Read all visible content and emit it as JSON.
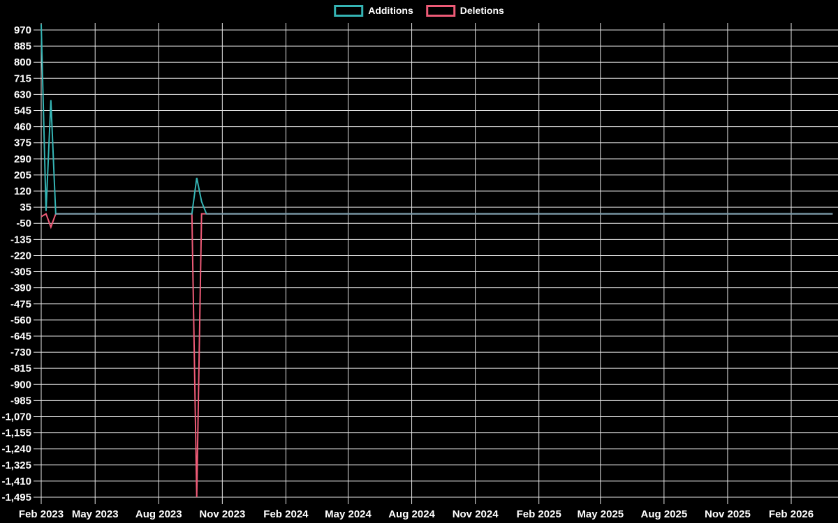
{
  "legend": {
    "items": [
      {
        "label": "Additions",
        "color": "#35b4b4"
      },
      {
        "label": "Deletions",
        "color": "#ee5b77"
      }
    ]
  },
  "chart_data": {
    "type": "line",
    "title": "",
    "background": "#000000",
    "grid": true,
    "grid_color": "#e6e6e6",
    "text_color": "#ffffff",
    "overlap_line_color": "#7e9dac",
    "legend_position": "top-center",
    "ylim": [
      -1495,
      970
    ],
    "y_tick_step": 85,
    "y_ticks": [
      {
        "value": 970,
        "label": "970"
      },
      {
        "value": 885,
        "label": "885"
      },
      {
        "value": 800,
        "label": "800"
      },
      {
        "value": 715,
        "label": "715"
      },
      {
        "value": 630,
        "label": "630"
      },
      {
        "value": 545,
        "label": "545"
      },
      {
        "value": 460,
        "label": "460"
      },
      {
        "value": 375,
        "label": "375"
      },
      {
        "value": 290,
        "label": "290"
      },
      {
        "value": 205,
        "label": "205"
      },
      {
        "value": 120,
        "label": "120"
      },
      {
        "value": 35,
        "label": "35"
      },
      {
        "value": -50,
        "label": "-50"
      },
      {
        "value": -135,
        "label": "-135"
      },
      {
        "value": -220,
        "label": "-220"
      },
      {
        "value": -305,
        "label": "-305"
      },
      {
        "value": -390,
        "label": "-390"
      },
      {
        "value": -475,
        "label": "-475"
      },
      {
        "value": -560,
        "label": "-560"
      },
      {
        "value": -645,
        "label": "-645"
      },
      {
        "value": -730,
        "label": "-730"
      },
      {
        "value": -815,
        "label": "-815"
      },
      {
        "value": -900,
        "label": "-900"
      },
      {
        "value": -985,
        "label": "-985"
      },
      {
        "value": -1070,
        "label": "-1,070"
      },
      {
        "value": -1155,
        "label": "-1,155"
      },
      {
        "value": -1240,
        "label": "-1,240"
      },
      {
        "value": -1325,
        "label": "-1,325"
      },
      {
        "value": -1410,
        "label": "-1,410"
      },
      {
        "value": -1495,
        "label": "-1,495"
      }
    ],
    "x_ticks": [
      {
        "label": "Feb 2023",
        "day": 0
      },
      {
        "label": "May 2023",
        "day": 78
      },
      {
        "label": "Aug 2023",
        "day": 170
      },
      {
        "label": "Nov 2023",
        "day": 262
      },
      {
        "label": "Feb 2024",
        "day": 354
      },
      {
        "label": "May 2024",
        "day": 444
      },
      {
        "label": "Aug 2024",
        "day": 536
      },
      {
        "label": "Nov 2024",
        "day": 628
      },
      {
        "label": "Feb 2025",
        "day": 720
      },
      {
        "label": "May 2025",
        "day": 809
      },
      {
        "label": "Aug 2025",
        "day": 901
      },
      {
        "label": "Nov 2025",
        "day": 993
      },
      {
        "label": "Feb 2026",
        "day": 1085
      }
    ],
    "series": [
      {
        "name": "Deletions",
        "color": "#ee5b77",
        "points": [
          [
            0,
            -15
          ],
          [
            7,
            0
          ],
          [
            14,
            -70
          ],
          [
            21,
            0
          ],
          [
            218,
            0
          ],
          [
            225,
            -1495
          ],
          [
            232,
            0
          ],
          [
            1145,
            0
          ]
        ]
      },
      {
        "name": "Additions",
        "color": "#35b4b4",
        "points": [
          [
            0,
            1000
          ],
          [
            7,
            15
          ],
          [
            14,
            600
          ],
          [
            21,
            0
          ],
          [
            218,
            0
          ],
          [
            225,
            190
          ],
          [
            232,
            65
          ],
          [
            239,
            0
          ],
          [
            1145,
            0
          ]
        ]
      }
    ],
    "zero_overlap_segments": [
      [
        21,
        218
      ],
      [
        239,
        1145
      ]
    ]
  }
}
